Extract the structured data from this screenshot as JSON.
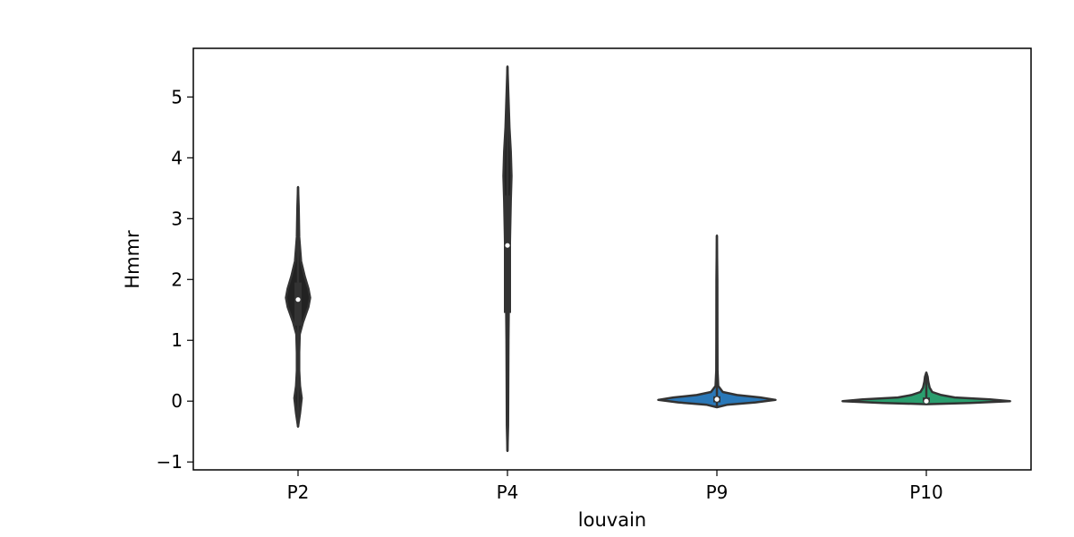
{
  "chart_data": {
    "type": "violin",
    "title": "",
    "xlabel": "louvain",
    "ylabel": "Hmmr",
    "ylim": [
      -1.13,
      5.8
    ],
    "yticks": [
      -1,
      0,
      1,
      2,
      3,
      4,
      5
    ],
    "ytick_labels": [
      "−1",
      "0",
      "1",
      "2",
      "3",
      "4",
      "5"
    ],
    "grid": false,
    "legend": "none",
    "categories": [
      "P2",
      "P4",
      "P9",
      "P10"
    ],
    "series": [
      {
        "category": "P2",
        "color": "#222222",
        "min": -0.42,
        "max": 3.52,
        "q1": 1.24,
        "median": 1.67,
        "q3": 1.95,
        "density": [
          [
            -0.42,
            0.0
          ],
          [
            -0.2,
            0.12
          ],
          [
            0.05,
            0.22
          ],
          [
            0.25,
            0.12
          ],
          [
            0.5,
            0.07
          ],
          [
            0.8,
            0.07
          ],
          [
            1.1,
            0.1
          ],
          [
            1.3,
            0.3
          ],
          [
            1.55,
            0.62
          ],
          [
            1.7,
            0.72
          ],
          [
            1.85,
            0.62
          ],
          [
            2.05,
            0.4
          ],
          [
            2.3,
            0.18
          ],
          [
            2.7,
            0.07
          ],
          [
            3.2,
            0.04
          ],
          [
            3.52,
            0.0
          ]
        ]
      },
      {
        "category": "P4",
        "color": "#222222",
        "min": -0.82,
        "max": 5.5,
        "q1": 1.45,
        "median": 2.56,
        "q3": 3.38,
        "density": [
          [
            -0.82,
            0.0
          ],
          [
            -0.4,
            0.04
          ],
          [
            0.3,
            0.05
          ],
          [
            1.0,
            0.06
          ],
          [
            1.6,
            0.08
          ],
          [
            2.2,
            0.12
          ],
          [
            2.8,
            0.16
          ],
          [
            3.3,
            0.2
          ],
          [
            3.7,
            0.24
          ],
          [
            4.1,
            0.2
          ],
          [
            4.5,
            0.12
          ],
          [
            5.0,
            0.06
          ],
          [
            5.5,
            0.0
          ]
        ]
      },
      {
        "category": "P9",
        "color": "#2a78b8",
        "min": -0.1,
        "max": 2.72,
        "q1": -0.02,
        "median": 0.03,
        "q3": 0.08,
        "density": [
          [
            -0.1,
            0.0
          ],
          [
            -0.06,
            0.6
          ],
          [
            -0.02,
            2.3
          ],
          [
            0.02,
            3.5
          ],
          [
            0.06,
            2.6
          ],
          [
            0.1,
            1.2
          ],
          [
            0.15,
            0.35
          ],
          [
            0.25,
            0.08
          ],
          [
            0.5,
            0.04
          ],
          [
            1.0,
            0.03
          ],
          [
            2.0,
            0.025
          ],
          [
            2.72,
            0.0
          ]
        ]
      },
      {
        "category": "P10",
        "color": "#2a9e6e",
        "min": -0.05,
        "max": 0.47,
        "q1": -0.02,
        "median": 0.0,
        "q3": 0.06,
        "density": [
          [
            -0.05,
            0.0
          ],
          [
            -0.03,
            2.6
          ],
          [
            0.0,
            5.0
          ],
          [
            0.03,
            3.8
          ],
          [
            0.06,
            1.7
          ],
          [
            0.1,
            0.9
          ],
          [
            0.15,
            0.35
          ],
          [
            0.22,
            0.2
          ],
          [
            0.32,
            0.12
          ],
          [
            0.4,
            0.08
          ],
          [
            0.47,
            0.0
          ]
        ]
      }
    ]
  }
}
